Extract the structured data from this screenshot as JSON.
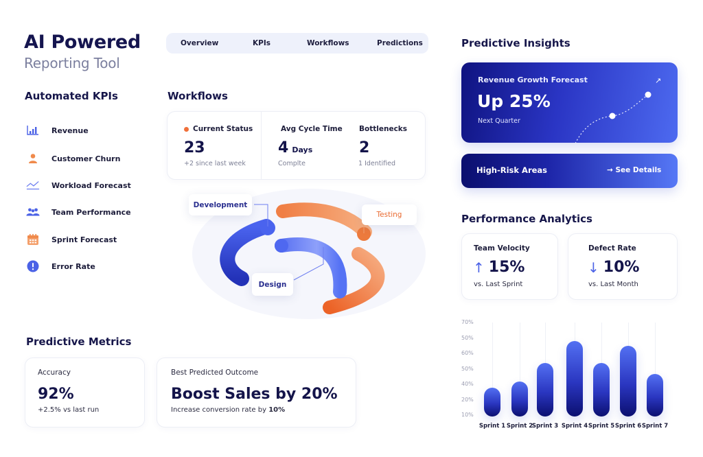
{
  "brand": {
    "title": "AI Powered",
    "subtitle": "Reporting Tool"
  },
  "nav": {
    "tabs": [
      "Overview",
      "KPIs",
      "Workflows",
      "Predictions"
    ]
  },
  "kpis": {
    "title": "Automated KPIs",
    "items": [
      {
        "label": "Revenue",
        "icon": "bar-chart-icon",
        "color": "#4b62e6"
      },
      {
        "label": "Customer Churn",
        "icon": "user-icon",
        "color": "#f08a4b"
      },
      {
        "label": "Workload Forecast",
        "icon": "trend-line-icon",
        "color": "#4b62e6"
      },
      {
        "label": "Team Performance",
        "icon": "team-icon",
        "color": "#4b62e6"
      },
      {
        "label": "Sprint Forecast",
        "icon": "calendar-icon",
        "color": "#f08a4b"
      },
      {
        "label": "Error Rate",
        "icon": "alert-icon",
        "color": "#4b62e6"
      }
    ]
  },
  "workflows": {
    "title": "Workflows",
    "status": {
      "current": {
        "label": "Current Status",
        "value": "23",
        "sub": "+2 since last week",
        "dot_color": "#f0703a"
      },
      "cycle": {
        "label": "Avg Cycle Time",
        "value": "4",
        "unit": "Days",
        "sub": "Complte"
      },
      "bottlenecks": {
        "label": "Bottlenecks",
        "value": "2",
        "sub": "1 Identified"
      }
    },
    "diagram": {
      "development": "Development",
      "testing": "Testing",
      "design": "Design"
    }
  },
  "predictive_metrics": {
    "title": "Predictive Metrics",
    "accuracy": {
      "label": "Accuracy",
      "value": "92%",
      "sub": "+2.5% vs last run"
    },
    "outcome": {
      "label": "Best Predicted Outcome",
      "value": "Boost Sales by 20%",
      "sub_prefix": "Increase conversion rate by ",
      "sub_strong": "10%"
    }
  },
  "predictive_insights": {
    "title": "Predictive Insights",
    "revenue": {
      "label": "Revenue Growth Forecast",
      "value": "Up 25%",
      "sub": "Next Quarter",
      "arrow": "↗"
    },
    "risk": {
      "label": "High-Risk Areas",
      "action": "→ See Details"
    }
  },
  "performance": {
    "title": "Performance Analytics",
    "velocity": {
      "label": "Team Velocity",
      "arrow": "↑",
      "value": "15%",
      "sub": "vs. Last Sprint"
    },
    "defect": {
      "label": "Defect Rate",
      "arrow": "↓",
      "value": "10%",
      "sub": "vs. Last Month"
    }
  },
  "chart_data": {
    "type": "bar",
    "title": "",
    "xlabel": "",
    "ylabel": "",
    "categories": [
      "Sprint 1",
      "Sprint 2",
      "Sprint 3",
      "Sprint 4",
      "Sprint 5",
      "Sprint 6",
      "Sprint 7"
    ],
    "values": [
      27,
      31,
      43,
      57,
      43,
      54,
      36
    ],
    "y_tick_labels": [
      "70%",
      "50%",
      "60%",
      "50%",
      "40%",
      "20%",
      "10%"
    ],
    "ylim": [
      10,
      70
    ],
    "grid": "vertical",
    "legend": "none",
    "colors": {
      "bar_top": "#5370f2",
      "bar_bottom": "#0b0f70"
    }
  },
  "colors": {
    "navy": "#14144a",
    "accent_blue": "#4b62e6",
    "accent_orange": "#f08a4b"
  }
}
